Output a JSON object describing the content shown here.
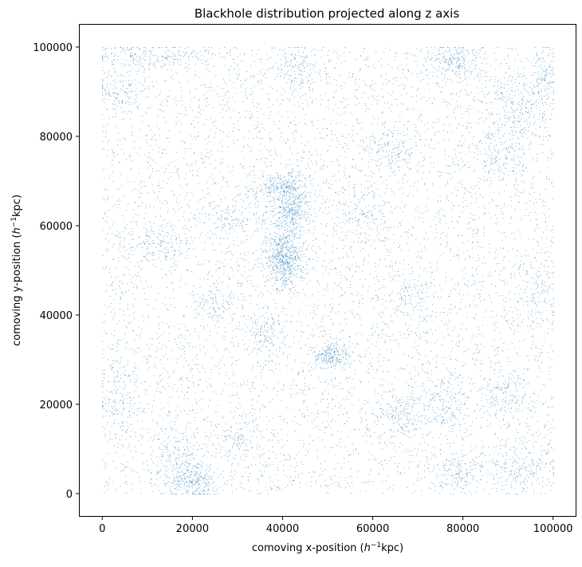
{
  "chart_data": {
    "type": "scatter",
    "title": "Blackhole distribution projected along z axis",
    "xlabel": {
      "prefix": "comoving x-position (",
      "italic": "h",
      "sup": "−1",
      "suffix": "kpc)"
    },
    "ylabel": {
      "prefix": "comoving y-position (",
      "italic": "h",
      "sup": "−1",
      "suffix": "kpc)"
    },
    "xlim": [
      -5000,
      105000
    ],
    "ylim": [
      -5000,
      105000
    ],
    "xticks": [
      {
        "value": 0,
        "label": "0"
      },
      {
        "value": 20000,
        "label": "20000"
      },
      {
        "value": 40000,
        "label": "40000"
      },
      {
        "value": 60000,
        "label": "60000"
      },
      {
        "value": 80000,
        "label": "80000"
      },
      {
        "value": 100000,
        "label": "100000"
      }
    ],
    "yticks": [
      {
        "value": 0,
        "label": "0"
      },
      {
        "value": 20000,
        "label": "20000"
      },
      {
        "value": 40000,
        "label": "40000"
      },
      {
        "value": 60000,
        "label": "60000"
      },
      {
        "value": 80000,
        "label": "80000"
      },
      {
        "value": 100000,
        "label": "100000"
      }
    ],
    "grid": false,
    "marker_color": "#1f77b4",
    "data_extent": {
      "x": [
        0,
        100000
      ],
      "y": [
        0,
        100000
      ]
    },
    "uniform_background_count": 6500,
    "clusters": [
      {
        "x": 40000,
        "y": 53000,
        "sx": 2200,
        "sy": 3500,
        "n": 600
      },
      {
        "x": 42000,
        "y": 65000,
        "sx": 2000,
        "sy": 3500,
        "n": 450
      },
      {
        "x": 38000,
        "y": 69000,
        "sx": 2500,
        "sy": 1500,
        "n": 160
      },
      {
        "x": 51000,
        "y": 31000,
        "sx": 2000,
        "sy": 1500,
        "n": 220
      },
      {
        "x": 20000,
        "y": 3000,
        "sx": 3000,
        "sy": 2200,
        "n": 280
      },
      {
        "x": 17000,
        "y": 8000,
        "sx": 2500,
        "sy": 3000,
        "n": 140
      },
      {
        "x": 10000,
        "y": 98000,
        "sx": 7000,
        "sy": 1500,
        "n": 220
      },
      {
        "x": 78000,
        "y": 97000,
        "sx": 3500,
        "sy": 2500,
        "n": 200
      },
      {
        "x": 92000,
        "y": 86000,
        "sx": 4000,
        "sy": 4000,
        "n": 220
      },
      {
        "x": 88000,
        "y": 76000,
        "sx": 3000,
        "sy": 3000,
        "n": 140
      },
      {
        "x": 4000,
        "y": 90000,
        "sx": 3000,
        "sy": 2000,
        "n": 120
      },
      {
        "x": 36000,
        "y": 36000,
        "sx": 2000,
        "sy": 2500,
        "n": 120
      },
      {
        "x": 66000,
        "y": 18000,
        "sx": 3000,
        "sy": 2500,
        "n": 160
      },
      {
        "x": 76000,
        "y": 21000,
        "sx": 4000,
        "sy": 3000,
        "n": 160
      },
      {
        "x": 89000,
        "y": 22000,
        "sx": 3000,
        "sy": 2500,
        "n": 150
      },
      {
        "x": 93000,
        "y": 6000,
        "sx": 4000,
        "sy": 3000,
        "n": 180
      },
      {
        "x": 79000,
        "y": 5000,
        "sx": 3000,
        "sy": 2500,
        "n": 150
      },
      {
        "x": 3000,
        "y": 22000,
        "sx": 2500,
        "sy": 4000,
        "n": 140
      },
      {
        "x": 12000,
        "y": 56000,
        "sx": 4000,
        "sy": 2000,
        "n": 140
      },
      {
        "x": 28000,
        "y": 62000,
        "sx": 4000,
        "sy": 2500,
        "n": 120
      },
      {
        "x": 64000,
        "y": 77000,
        "sx": 3500,
        "sy": 2500,
        "n": 130
      },
      {
        "x": 43000,
        "y": 95000,
        "sx": 3000,
        "sy": 3000,
        "n": 130
      },
      {
        "x": 25000,
        "y": 43000,
        "sx": 3000,
        "sy": 3000,
        "n": 110
      },
      {
        "x": 68000,
        "y": 44000,
        "sx": 3000,
        "sy": 3000,
        "n": 110
      },
      {
        "x": 97000,
        "y": 46000,
        "sx": 2500,
        "sy": 5000,
        "n": 110
      },
      {
        "x": 57000,
        "y": 62000,
        "sx": 3000,
        "sy": 3000,
        "n": 100
      },
      {
        "x": 30000,
        "y": 12000,
        "sx": 3000,
        "sy": 2000,
        "n": 100
      },
      {
        "x": 98000,
        "y": 94000,
        "sx": 1500,
        "sy": 4000,
        "n": 110
      }
    ]
  }
}
